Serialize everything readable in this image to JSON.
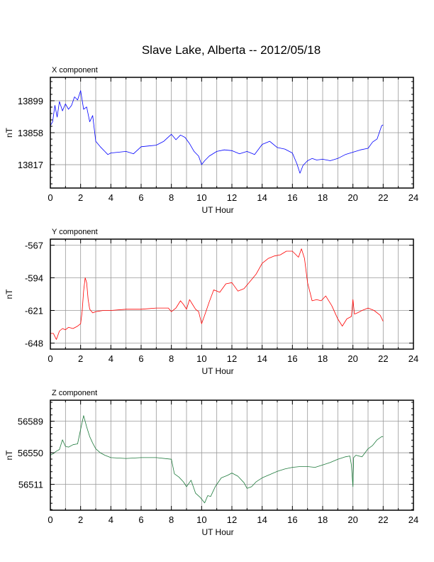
{
  "title": "Slave Lake, Alberta -- 2012/05/18",
  "chart_data": [
    {
      "type": "line",
      "panel_title": "X component",
      "xlabel": "UT Hour",
      "ylabel": "nT",
      "xlim": [
        0,
        24
      ],
      "ylim": [
        13787,
        13929
      ],
      "xticks": [
        0,
        2,
        4,
        6,
        8,
        10,
        12,
        14,
        16,
        18,
        20,
        22,
        24
      ],
      "yticks": [
        13817,
        13858,
        13899
      ],
      "grid": true,
      "color": "#0000ff",
      "series": [
        {
          "x": [
            0,
            0.15,
            0.3,
            0.45,
            0.6,
            0.8,
            1.0,
            1.2,
            1.4,
            1.6,
            1.8,
            2.0,
            2.2,
            2.4,
            2.6,
            2.8,
            3.0,
            3.3,
            3.6,
            3.8,
            4.0,
            4.5,
            5.0,
            5.5,
            6.0,
            6.5,
            7.0,
            7.5,
            8.0,
            8.3,
            8.6,
            8.9,
            9.2,
            9.5,
            9.8,
            10.0,
            10.2,
            10.5,
            11.0,
            11.5,
            12.0,
            12.5,
            13.0,
            13.5,
            14.0,
            14.5,
            15.0,
            15.5,
            16.0,
            16.3,
            16.5,
            16.7,
            17.0,
            17.3,
            17.6,
            18.0,
            18.5,
            19.0,
            19.5,
            20.0,
            20.5,
            21.0,
            21.3,
            21.6,
            21.9,
            22.0
          ],
          "y": [
            13867,
            13872,
            13893,
            13878,
            13898,
            13886,
            13895,
            13888,
            13893,
            13904,
            13900,
            13912,
            13888,
            13891,
            13872,
            13880,
            13847,
            13840,
            13834,
            13830,
            13832,
            13833,
            13834,
            13831,
            13840,
            13841,
            13842,
            13847,
            13856,
            13849,
            13855,
            13852,
            13844,
            13834,
            13828,
            13817,
            13822,
            13828,
            13834,
            13836,
            13835,
            13831,
            13834,
            13830,
            13843,
            13847,
            13839,
            13837,
            13832,
            13818,
            13806,
            13816,
            13822,
            13825,
            13823,
            13824,
            13822,
            13825,
            13830,
            13833,
            13836,
            13838,
            13846,
            13850,
            13867,
            13868
          ]
        }
      ]
    },
    {
      "type": "line",
      "panel_title": "Y component",
      "xlabel": "UT Hour",
      "ylabel": "nT",
      "xlim": [
        0,
        24
      ],
      "ylim": [
        -653,
        -562
      ],
      "xticks": [
        0,
        2,
        4,
        6,
        8,
        10,
        12,
        14,
        16,
        18,
        20,
        22,
        24
      ],
      "yticks": [
        -567,
        -594,
        -621,
        -648
      ],
      "grid": true,
      "color": "#ff0000",
      "series": [
        {
          "x": [
            0,
            0.2,
            0.4,
            0.6,
            0.8,
            1.0,
            1.2,
            1.5,
            1.8,
            2.0,
            2.1,
            2.2,
            2.3,
            2.4,
            2.5,
            2.6,
            2.8,
            3.0,
            3.5,
            4.0,
            5.0,
            6.0,
            7.0,
            7.8,
            8.0,
            8.3,
            8.6,
            8.8,
            9.0,
            9.2,
            9.4,
            9.6,
            9.8,
            10.0,
            10.2,
            10.5,
            10.8,
            11.2,
            11.6,
            12.0,
            12.4,
            12.8,
            13.2,
            13.6,
            14.0,
            14.4,
            14.8,
            15.2,
            15.6,
            16.0,
            16.4,
            16.6,
            16.8,
            17.0,
            17.3,
            17.6,
            17.9,
            18.2,
            18.6,
            19.0,
            19.3,
            19.6,
            19.9,
            20.0,
            20.1,
            20.3,
            20.6,
            21.0,
            21.4,
            21.8,
            22.0
          ],
          "y": [
            -640,
            -640,
            -645,
            -638,
            -636,
            -637,
            -635,
            -636,
            -634,
            -632,
            -622,
            -605,
            -594,
            -598,
            -612,
            -620,
            -623,
            -622,
            -621,
            -621,
            -620,
            -620,
            -619,
            -619,
            -622,
            -619,
            -613,
            -616,
            -620,
            -612,
            -616,
            -620,
            -622,
            -632,
            -625,
            -614,
            -604,
            -606,
            -599,
            -598,
            -605,
            -603,
            -597,
            -591,
            -582,
            -578,
            -576,
            -575,
            -572,
            -572,
            -577,
            -570,
            -578,
            -598,
            -613,
            -612,
            -613,
            -609,
            -617,
            -628,
            -634,
            -628,
            -626,
            -612,
            -624,
            -623,
            -621,
            -619,
            -621,
            -625,
            -630
          ]
        }
      ]
    },
    {
      "type": "line",
      "panel_title": "Z component",
      "xlabel": "UT Hour",
      "ylabel": "nT",
      "xlim": [
        0,
        24
      ],
      "ylim": [
        56479,
        56615
      ],
      "xticks": [
        0,
        2,
        4,
        6,
        8,
        10,
        12,
        14,
        16,
        18,
        20,
        22,
        24
      ],
      "yticks": [
        56511,
        56550,
        56589
      ],
      "grid": true,
      "color": "#1e7a3c",
      "series": [
        {
          "x": [
            0,
            0.2,
            0.4,
            0.6,
            0.8,
            1.0,
            1.2,
            1.5,
            1.8,
            2.0,
            2.2,
            2.4,
            2.6,
            2.8,
            3.0,
            3.3,
            3.6,
            4.0,
            5.0,
            6.0,
            7.0,
            8.0,
            8.2,
            8.5,
            8.8,
            9.0,
            9.3,
            9.6,
            9.9,
            10.2,
            10.4,
            10.6,
            10.9,
            11.3,
            11.7,
            12.0,
            12.4,
            12.8,
            13.0,
            13.3,
            13.6,
            14.0,
            14.5,
            15.0,
            15.5,
            16.0,
            16.5,
            17.0,
            17.5,
            18.0,
            18.5,
            19.0,
            19.5,
            19.8,
            19.9,
            20.0,
            20.05,
            20.2,
            20.6,
            21.0,
            21.3,
            21.6,
            21.9,
            22.0
          ],
          "y": [
            56547,
            56549,
            56552,
            56554,
            56566,
            56558,
            56557,
            56560,
            56561,
            56579,
            56596,
            56582,
            56570,
            56562,
            56555,
            56550,
            56547,
            56544,
            56543,
            56544,
            56544,
            56542,
            56524,
            56520,
            56514,
            56508,
            56516,
            56500,
            56495,
            56488,
            56497,
            56496,
            56508,
            56519,
            56522,
            56525,
            56521,
            56513,
            56506,
            56508,
            56514,
            56519,
            56523,
            56527,
            56530,
            56532,
            56533,
            56533,
            56532,
            56535,
            56538,
            56542,
            56545,
            56546,
            56535,
            56508,
            56544,
            56547,
            56545,
            56555,
            56559,
            56566,
            56570,
            56570
          ]
        }
      ]
    }
  ]
}
